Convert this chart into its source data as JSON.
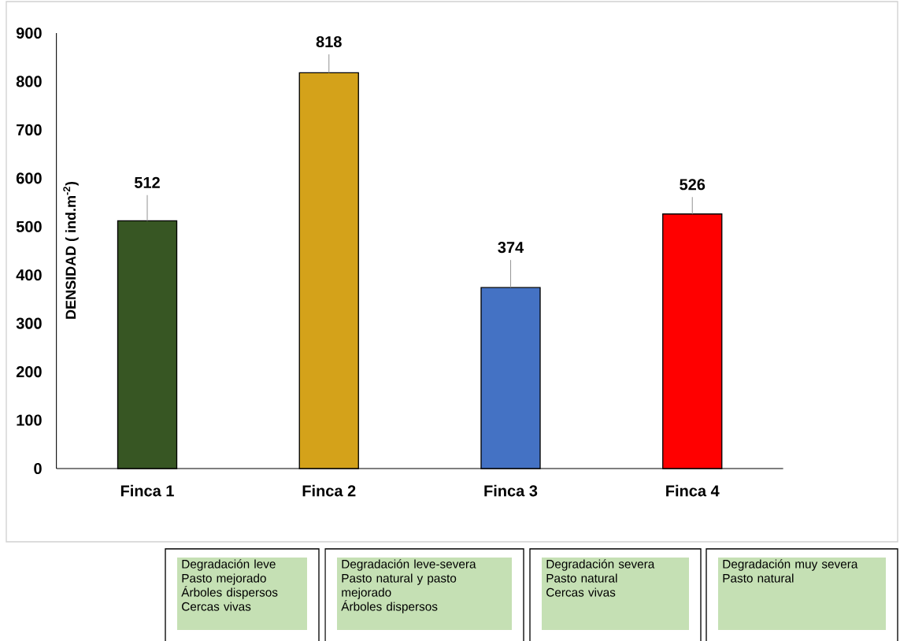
{
  "chart_data": {
    "type": "bar",
    "ylabel": "DENSIDAD ( ind.m$^{-2}$)",
    "categories": [
      "Finca 1",
      "Finca 2",
      "Finca 3",
      "Finca 4"
    ],
    "values": [
      512,
      818,
      374,
      526
    ],
    "errors": [
      [
        512,
        565
      ],
      [
        818,
        856
      ],
      [
        374,
        431
      ],
      [
        526,
        561
      ]
    ],
    "colors": [
      "#375623",
      "#d4a21a",
      "#4472c4",
      "#ff0000"
    ],
    "ylim": [
      0,
      900
    ],
    "yticks": [
      0,
      100,
      200,
      300,
      400,
      500,
      600,
      700,
      800,
      900
    ],
    "data_labels": true,
    "annotations": [
      "Degradación leve",
      "Pasto mejorado",
      "Árboles dispersos",
      "Cercas vivas",
      "Degradación leve-severa",
      "Pasto natural y pasto mejorado",
      "Árboles dispersos",
      "Degradación severa",
      "Pasto natural",
      "Cercas vivas",
      "Degradación muy severa",
      "Pasto natural"
    ]
  }
}
